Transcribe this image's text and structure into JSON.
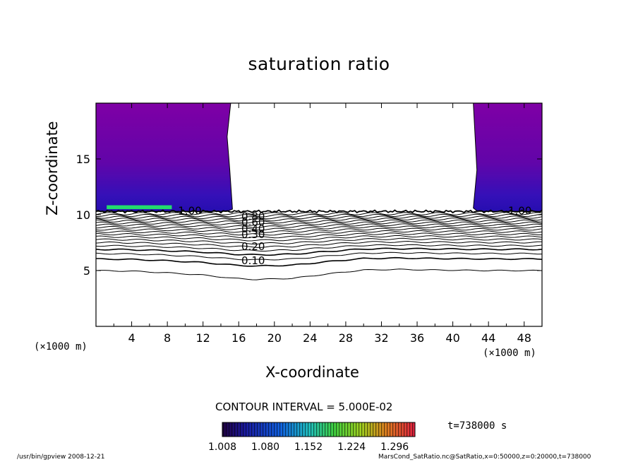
{
  "chart_data": {
    "type": "contour",
    "title": "saturation ratio",
    "xlabel": "X-coordinate",
    "ylabel": "Z-coordinate",
    "x_unit": "(×1000 m)",
    "x_unit_right": "(×1000 m)",
    "xlim": [
      0,
      50
    ],
    "ylim": [
      0,
      20
    ],
    "x_ticks": [
      4,
      8,
      12,
      16,
      20,
      24,
      28,
      32,
      36,
      40,
      44,
      48
    ],
    "y_ticks": [
      5,
      10,
      15
    ],
    "contour_interval": "CONTOUR INTERVAL = 5.000E-02",
    "time_label": "t=738000 s",
    "colorbar_ticks": [
      "1.008",
      "1.080",
      "1.152",
      "1.224",
      "1.296"
    ],
    "colorbar_range": [
      1.008,
      1.33
    ],
    "contour_labels": [
      "1.00",
      "0.10",
      "0.20",
      "0.30",
      "0.40",
      "0.60",
      "0.80",
      "1.00"
    ],
    "contour_levels": [
      0.05,
      0.1,
      0.15,
      0.2,
      0.25,
      0.3,
      0.35,
      0.4,
      0.45,
      0.5,
      0.55,
      0.6,
      0.65,
      0.7,
      0.75,
      0.8,
      0.85,
      0.9,
      0.95
    ],
    "baseline_z": [
      5.0,
      4.95,
      4.8,
      4.6,
      4.3,
      4.2,
      4.3,
      4.7,
      5.05,
      5.1,
      5.05,
      5.0,
      5.0
    ],
    "baseline_x": [
      0,
      4,
      8,
      12,
      15.5,
      18,
      22,
      26,
      30,
      34,
      38,
      44,
      50
    ],
    "top_level_z": 10.3,
    "supersaturated_regions": [
      {
        "x_range": [
          0,
          15.3
        ],
        "z_range": [
          10.3,
          20
        ]
      },
      {
        "x_range": [
          42.3,
          50
        ],
        "z_range": [
          10.3,
          20
        ]
      }
    ],
    "colors": {
      "region_top": "#8a00b4",
      "region_low": "#2a10c0",
      "region_peak": "#22ff60"
    }
  },
  "footer": {
    "left": "/usr/bin/gpview   2008-12-21",
    "right": "MarsCond_SatRatio.nc@SatRatio,x=0:50000,z=0:20000,t=738000"
  }
}
